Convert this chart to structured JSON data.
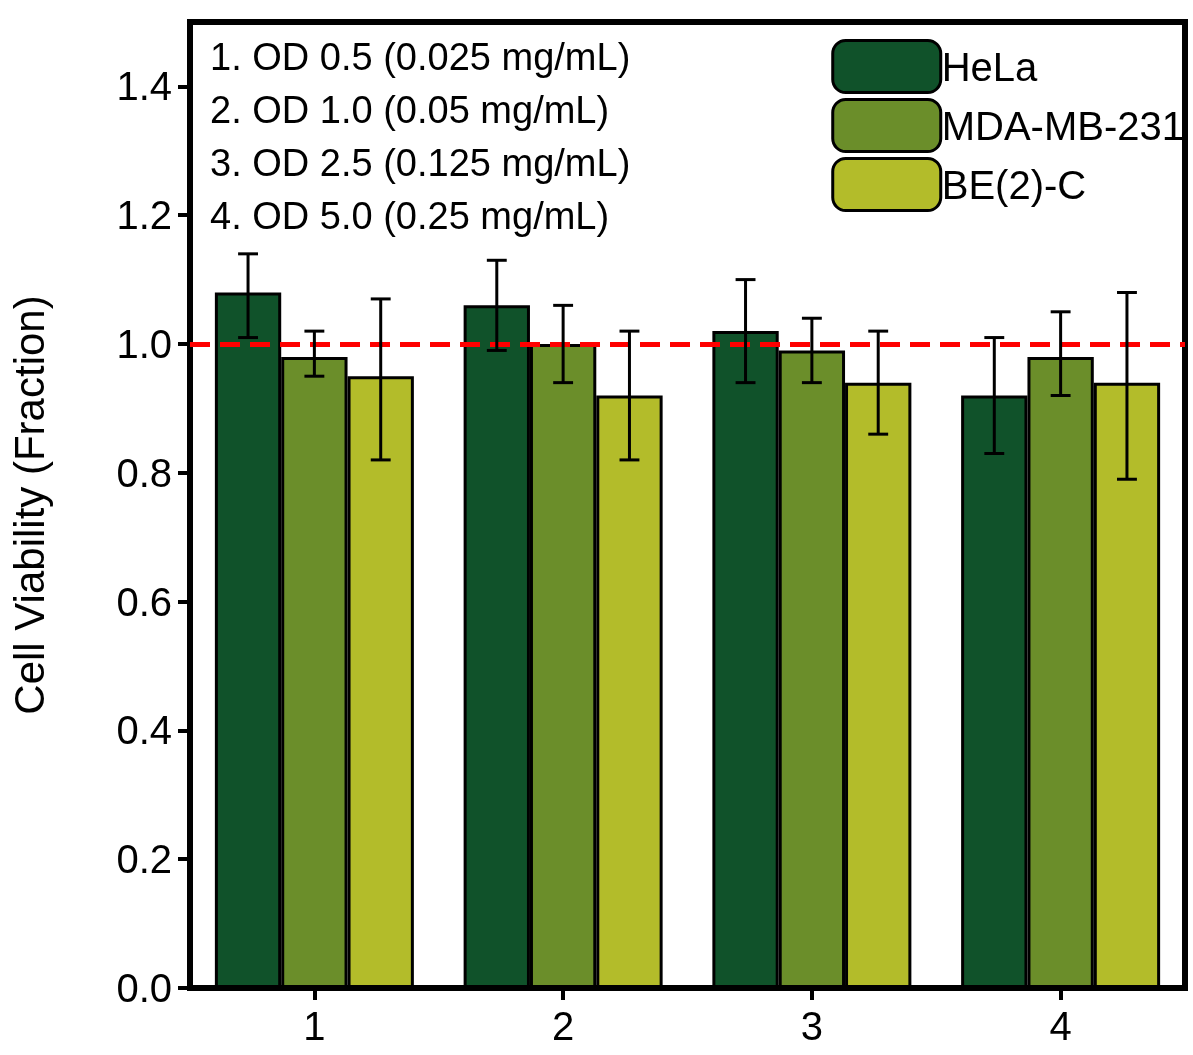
{
  "chart_data": {
    "type": "bar",
    "ylabel": "Cell Viability (Fraction)",
    "categories": [
      "1",
      "2",
      "3",
      "4"
    ],
    "series": [
      {
        "name": "HeLa",
        "color": "#10522a",
        "values": [
          1.08,
          1.06,
          1.02,
          0.92
        ],
        "errors": [
          [
            1.01,
            1.14
          ],
          [
            0.99,
            1.13
          ],
          [
            0.94,
            1.1
          ],
          [
            0.83,
            1.01
          ]
        ]
      },
      {
        "name": "MDA-MB-231",
        "color": "#6b8e2a",
        "values": [
          0.98,
          1.0,
          0.99,
          0.98
        ],
        "errors": [
          [
            0.95,
            1.02
          ],
          [
            0.94,
            1.06
          ],
          [
            0.94,
            1.04
          ],
          [
            0.92,
            1.05
          ]
        ]
      },
      {
        "name": "BE(2)-C",
        "color": "#b3bc2a",
        "values": [
          0.95,
          0.92,
          0.94,
          0.94
        ],
        "errors": [
          [
            0.82,
            1.07
          ],
          [
            0.82,
            1.02
          ],
          [
            0.86,
            1.02
          ],
          [
            0.79,
            1.08
          ]
        ]
      }
    ],
    "ylim": [
      0,
      1.5
    ],
    "yticks": [
      {
        "value": 0,
        "label": "0.0"
      },
      {
        "value": 0.2,
        "label": "0.2"
      },
      {
        "value": 0.4,
        "label": "0.4"
      },
      {
        "value": 0.6,
        "label": "0.6"
      },
      {
        "value": 0.8,
        "label": "0.8"
      },
      {
        "value": 1.0,
        "label": "1.0"
      },
      {
        "value": 1.2,
        "label": "1.2"
      },
      {
        "value": 1.4,
        "label": "1.4"
      }
    ],
    "ref_lines": [
      {
        "axis": "y",
        "value": 1.0,
        "color": "#ff0000",
        "line_style": "dashed"
      }
    ],
    "annotations": [
      "1. OD 0.5 (0.025 mg/mL)",
      "2. OD 1.0 (0.05 mg/mL)",
      "3. OD 2.5 (0.125 mg/mL)",
      "4. OD 5.0 (0.25 mg/mL)"
    ],
    "legend": "top right",
    "grid": false
  }
}
